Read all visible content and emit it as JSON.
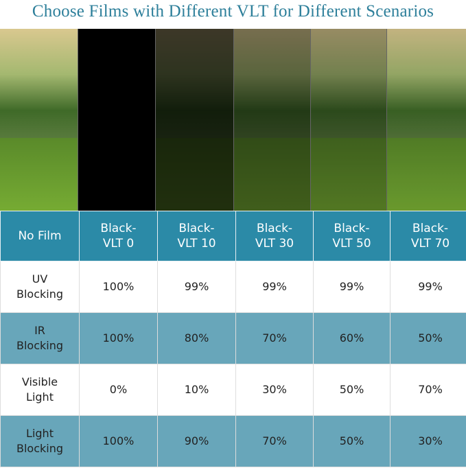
{
  "title": "Choose Films with Different VLT for Different Scenarios",
  "photo_tints": [
    0,
    1,
    0.72,
    0.45,
    0.3,
    0.1
  ],
  "table": {
    "header": [
      "No Film",
      "Black-\nVLT 0",
      "Black-\nVLT 10",
      "Black-\nVLT 30",
      "Black-\nVLT 50",
      "Black-\nVLT 70"
    ],
    "rows": [
      {
        "label": "UV\nBlocking",
        "values": [
          "100%",
          "99%",
          "99%",
          "99%",
          "99%"
        ]
      },
      {
        "label": "IR\nBlocking",
        "values": [
          "100%",
          "80%",
          "70%",
          "60%",
          "50%"
        ]
      },
      {
        "label": "Visible\nLight",
        "values": [
          "0%",
          "10%",
          "30%",
          "50%",
          "70%"
        ]
      },
      {
        "label": "Light\nBlocking",
        "values": [
          "100%",
          "90%",
          "70%",
          "50%",
          "30%"
        ]
      }
    ]
  },
  "colors": {
    "header": "#2b8aa7",
    "row_blue": "#68a6ba",
    "title": "#2d7f9a"
  }
}
